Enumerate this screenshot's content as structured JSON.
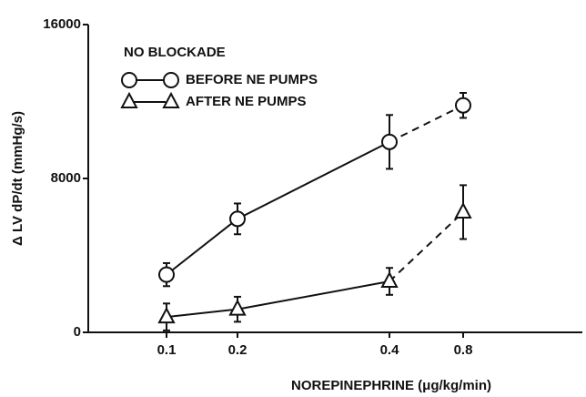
{
  "chart_data": {
    "type": "line",
    "legend_title": "NO BLOCKADE",
    "x_label": "NOREPINEPHRINE (μg/kg/min)",
    "y_label": "Δ LV dP/dt (mmHg/s)",
    "categories": [
      "0.1",
      "0.2",
      "0.4",
      "0.8"
    ],
    "ylim": [
      0,
      16000
    ],
    "yticks": [
      0,
      8000,
      16000
    ],
    "legend_position": "upper left",
    "segment_styles": [
      "solid",
      "solid",
      "dashed"
    ],
    "series": [
      {
        "name": "BEFORE NE PUMPS",
        "color": "#111111",
        "marker": "circle",
        "values": [
          3000,
          5900,
          9900,
          11800
        ],
        "errors": [
          600,
          800,
          1400,
          650
        ]
      },
      {
        "name": "AFTER NE PUMPS",
        "color": "#111111",
        "marker": "triangle",
        "values": [
          800,
          1200,
          2650,
          6250
        ],
        "errors": [
          700,
          650,
          700,
          1400
        ]
      }
    ]
  }
}
